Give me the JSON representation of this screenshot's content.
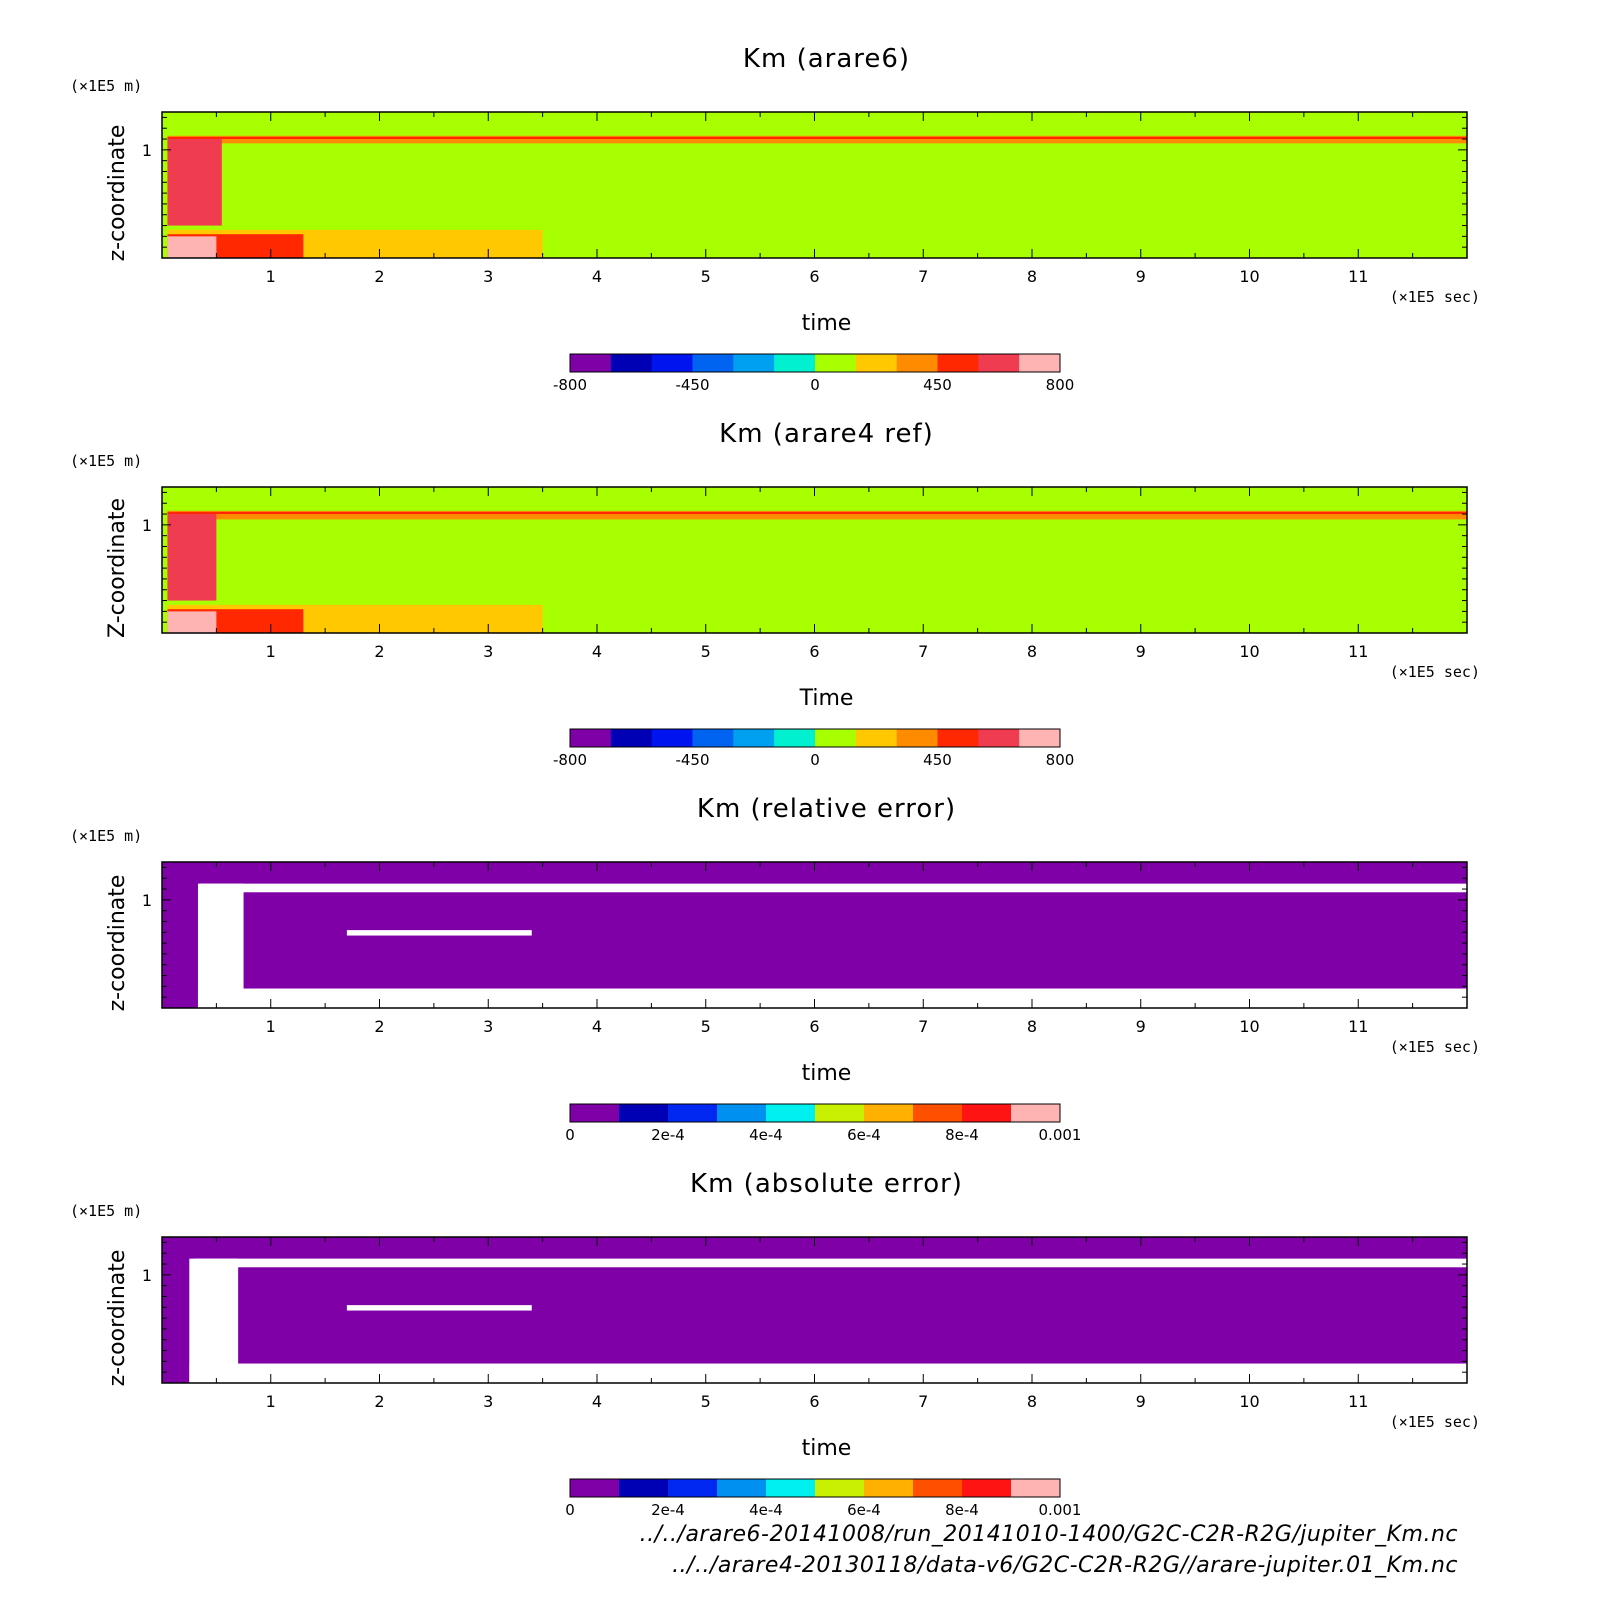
{
  "colors": {
    "cmap": [
      "#8000a8",
      "#0000b4",
      "#0014f0",
      "#0064f0",
      "#00a0f0",
      "#00f0d0",
      "#a8ff00",
      "#ffc800",
      "#ff8c00",
      "#ff2800",
      "#f03c50",
      "#ffb4b4"
    ],
    "cmap_err": [
      "#8000a8",
      "#0000b4",
      "#0028f0",
      "#0090f0",
      "#00f0f0",
      "#c8f000",
      "#ffb000",
      "#ff5000",
      "#ff1414",
      "#ffb4b4"
    ]
  },
  "chart_data": [
    {
      "type": "heatmap",
      "title": "Km (arare6)",
      "xlabel": "time",
      "ylabel": "z-coordinate",
      "xunit": "(×1E5 sec)",
      "yunit": "(×1E5 m)",
      "xlim": [
        0,
        12
      ],
      "ylim": [
        0,
        1.35
      ],
      "xticks": [
        "1",
        "2",
        "3",
        "4",
        "5",
        "6",
        "7",
        "8",
        "9",
        "10",
        "11"
      ],
      "yticks": [
        "1"
      ],
      "colorbar": {
        "range": [
          -800,
          800
        ],
        "labels": [
          "-800",
          "-450",
          "0",
          "450",
          "800"
        ]
      },
      "regions": [
        {
          "desc": "background",
          "level": 6
        },
        {
          "desc": "upper band",
          "x": [
            0.05,
            12
          ],
          "z": [
            1.06,
            1.13
          ],
          "level": 8
        },
        {
          "desc": "upper band core",
          "x": [
            0.05,
            12
          ],
          "z": [
            1.1,
            1.12
          ],
          "level": 9
        },
        {
          "desc": "lower layer",
          "x": [
            0.05,
            3.5
          ],
          "z": [
            0,
            0.26
          ],
          "level": 7
        },
        {
          "desc": "lower layer",
          "x": [
            0.05,
            1.3
          ],
          "z": [
            0,
            0.22
          ],
          "level": 9
        },
        {
          "desc": "lower layer",
          "x": [
            0.05,
            0.5
          ],
          "z": [
            0,
            0.2
          ],
          "level": 11
        },
        {
          "desc": "mid-left blob",
          "x": [
            0.05,
            0.55
          ],
          "z": [
            0.3,
            1.1
          ],
          "level": 10
        }
      ]
    },
    {
      "type": "heatmap",
      "title": "Km (arare4 ref)",
      "xlabel": "Time",
      "ylabel": "Z-coordinate",
      "xunit": "(×1E5 sec)",
      "yunit": "(×1E5 m)",
      "xlim": [
        0,
        12
      ],
      "ylim": [
        0,
        1.35
      ],
      "xticks": [
        "1",
        "2",
        "3",
        "4",
        "5",
        "6",
        "7",
        "8",
        "9",
        "10",
        "11"
      ],
      "yticks": [
        "1"
      ],
      "colorbar": {
        "range": [
          -800,
          800
        ],
        "labels": [
          "-800",
          "-450",
          "0",
          "450",
          "800"
        ]
      },
      "regions": [
        {
          "desc": "background",
          "level": 6
        },
        {
          "desc": "upper band",
          "x": [
            0.05,
            12
          ],
          "z": [
            1.05,
            1.13
          ],
          "level": 8
        },
        {
          "desc": "upper band core",
          "x": [
            0.05,
            12
          ],
          "z": [
            1.1,
            1.12
          ],
          "level": 9
        },
        {
          "desc": "lower layer",
          "x": [
            0.05,
            3.5
          ],
          "z": [
            0,
            0.26
          ],
          "level": 7
        },
        {
          "desc": "lower layer",
          "x": [
            0.05,
            1.3
          ],
          "z": [
            0,
            0.22
          ],
          "level": 9
        },
        {
          "desc": "lower layer",
          "x": [
            0.05,
            0.5
          ],
          "z": [
            0,
            0.2
          ],
          "level": 11
        },
        {
          "desc": "mid-left blob",
          "x": [
            0.05,
            0.5
          ],
          "z": [
            0.3,
            1.1
          ],
          "level": 10
        }
      ]
    },
    {
      "type": "heatmap",
      "title": "Km (relative error)",
      "xlabel": "time",
      "ylabel": "z-coordinate",
      "xunit": "(×1E5 sec)",
      "yunit": "(×1E5 m)",
      "xlim": [
        0,
        12
      ],
      "ylim": [
        0,
        1.35
      ],
      "xticks": [
        "1",
        "2",
        "3",
        "4",
        "5",
        "6",
        "7",
        "8",
        "9",
        "10",
        "11"
      ],
      "yticks": [
        "1"
      ],
      "colorbar": {
        "range": [
          0,
          0.001
        ],
        "labels": [
          "0",
          "2e-4",
          "4e-4",
          "6e-4",
          "8e-4",
          "0.001"
        ]
      },
      "regions": [
        {
          "desc": "background",
          "level": 0
        },
        {
          "desc": "no data (upper)",
          "x": [
            0.35,
            12
          ],
          "z": [
            1.07,
            1.15
          ],
          "level": null
        },
        {
          "desc": "no data (left)",
          "x": [
            0.33,
            0.75
          ],
          "z": [
            0,
            1.15
          ],
          "level": null
        },
        {
          "desc": "no data (bottom)",
          "x": [
            0.33,
            12
          ],
          "z": [
            0,
            0.18
          ],
          "level": null
        },
        {
          "desc": "no data streak",
          "x": [
            1.7,
            3.4
          ],
          "z": [
            0.67,
            0.72
          ],
          "level": null
        }
      ]
    },
    {
      "type": "heatmap",
      "title": "Km (absolute error)",
      "xlabel": "time",
      "ylabel": "z-coordinate",
      "xunit": "(×1E5 sec)",
      "yunit": "(×1E5 m)",
      "xlim": [
        0,
        12
      ],
      "ylim": [
        0,
        1.35
      ],
      "xticks": [
        "1",
        "2",
        "3",
        "4",
        "5",
        "6",
        "7",
        "8",
        "9",
        "10",
        "11"
      ],
      "yticks": [
        "1"
      ],
      "colorbar": {
        "range": [
          0,
          0.001
        ],
        "labels": [
          "0",
          "2e-4",
          "4e-4",
          "6e-4",
          "8e-4",
          "0.001"
        ]
      },
      "regions": [
        {
          "desc": "background",
          "level": 0
        },
        {
          "desc": "no data (upper)",
          "x": [
            0.3,
            12
          ],
          "z": [
            1.07,
            1.15
          ],
          "level": null
        },
        {
          "desc": "no data (left)",
          "x": [
            0.25,
            0.7
          ],
          "z": [
            0,
            1.15
          ],
          "level": null
        },
        {
          "desc": "no data (bottom)",
          "x": [
            0.25,
            12
          ],
          "z": [
            0,
            0.18
          ],
          "level": null
        },
        {
          "desc": "no data streak",
          "x": [
            1.7,
            3.4
          ],
          "z": [
            0.67,
            0.72
          ],
          "level": null
        }
      ]
    }
  ],
  "footer": {
    "line1": "../../arare6-20141008/run_20141010-1400/G2C-C2R-R2G/jupiter_Km.nc",
    "line2": "../../arare4-20130118/data-v6/G2C-C2R-R2G//arare-jupiter.01_Km.nc"
  }
}
